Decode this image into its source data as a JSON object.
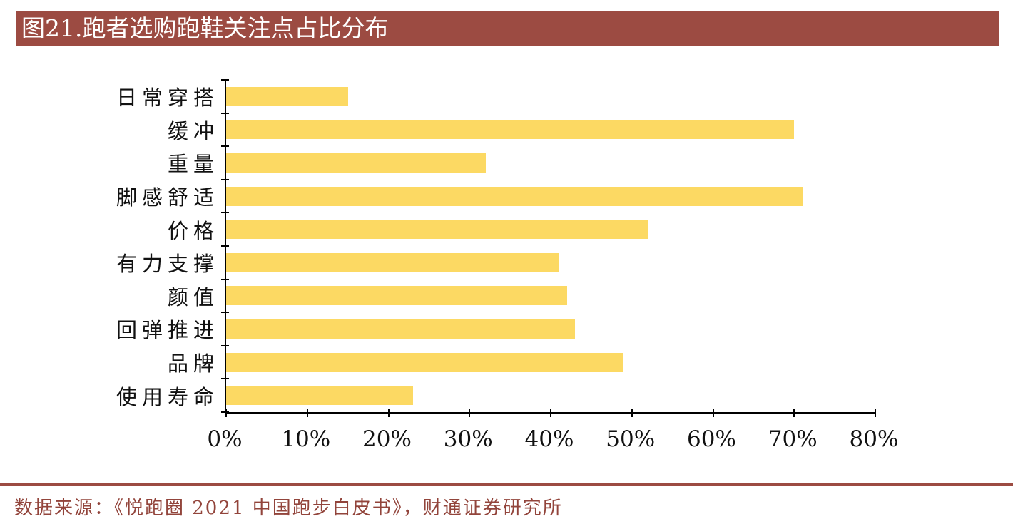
{
  "title": {
    "label": "图21.跑者选购跑鞋关注点占比分布"
  },
  "chart_data": {
    "type": "bar",
    "orientation": "horizontal",
    "title": "图21.跑者选购跑鞋关注点占比分布",
    "categories": [
      "日常穿搭",
      "缓冲",
      "重量",
      "脚感舒适",
      "价格",
      "有力支撑",
      "颜值",
      "回弹推进",
      "品牌",
      "使用寿命"
    ],
    "values": [
      15,
      70,
      32,
      71,
      52,
      41,
      42,
      43,
      49,
      23
    ],
    "unit": "%",
    "xlim": [
      0,
      80
    ],
    "x_ticks": [
      "0%",
      "10%",
      "20%",
      "30%",
      "40%",
      "50%",
      "60%",
      "70%",
      "80%"
    ],
    "xlabel": "",
    "ylabel": "",
    "grid": false,
    "legend": false,
    "bar_color": "#FCD963"
  },
  "footer": {
    "source": "数据来源：《悦跑圈 2021 中国跑步白皮书》，财通证券研究所"
  },
  "colors": {
    "title_bg": "#9C4B42",
    "title_text": "#FFFFFF",
    "bar": "#FCD963",
    "axis": "#000000",
    "divider": "#9C4B42",
    "footer_text": "#92443B"
  }
}
